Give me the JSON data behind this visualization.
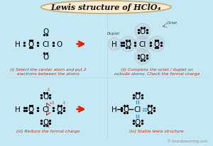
{
  "title": "Lewis structure of HClO₄",
  "bg_color": "#c5e8f5",
  "title_bg": "#faecd0",
  "title_border": "#c8a870",
  "arrow_color": "#dd2200",
  "text_color": "#111111",
  "caption_color": "#dd2200",
  "dot_color": "#111111",
  "bond_color": "#3399cc",
  "circle_color": "#b0b8c0",
  "watermark": "© knordislearning.com",
  "panel1_caption": "(i) Select the center atom and put 2\nelectrons between the atoms",
  "panel2_caption": "(ii) Complete the octet / duplet on\noutside atoms. Check the formal charge",
  "panel3_caption": "(iii) Reduce the formal charge",
  "panel4_caption": "(iv) Stable lewis structure"
}
